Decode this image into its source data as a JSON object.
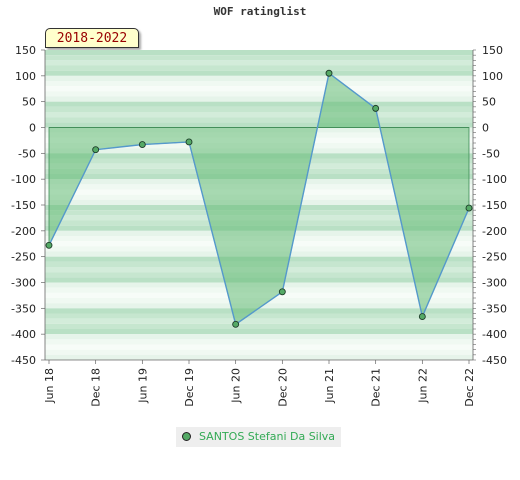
{
  "chart_data": {
    "type": "area",
    "title": "WOF ratinglist",
    "period_label": "2018-2022",
    "x": [
      "Jun 18",
      "Dec 18",
      "Jun 19",
      "Dec 19",
      "Jun 20",
      "Dec 20",
      "Jun 21",
      "Dec 21",
      "Jun 22",
      "Dec 22"
    ],
    "series": [
      {
        "name": "SANTOS Stefani Da Silva",
        "values": [
          -228,
          -43,
          -33,
          -28,
          -381,
          -318,
          105,
          37,
          -366,
          -156
        ]
      }
    ],
    "ylim": [
      -450,
      150
    ],
    "yticks": [
      150,
      100,
      50,
      0,
      -50,
      -100,
      -150,
      -200,
      -250,
      -300,
      -350,
      -400,
      -450
    ],
    "yaxis_both_sides": true,
    "legend_position": "bottom-center",
    "colors": {
      "line": "#5599cc",
      "fill": "#66bb77",
      "marker": "#55aa66",
      "legend_text": "#33aa55"
    }
  }
}
